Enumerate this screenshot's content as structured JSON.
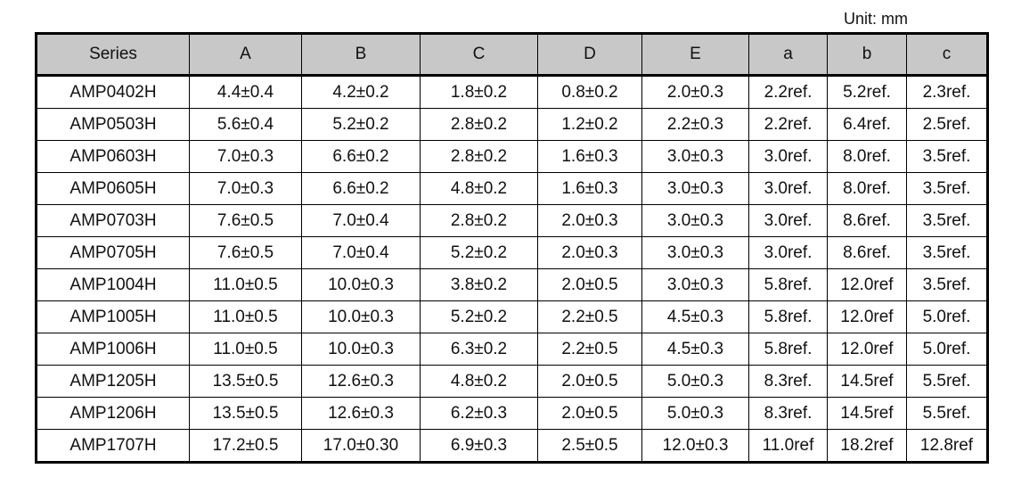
{
  "unit": "Unit: mm",
  "table": {
    "header": [
      "Series",
      "A",
      "B",
      "C",
      "D",
      "E",
      "a",
      "b",
      "c"
    ],
    "rows": [
      [
        "AMP0402H",
        "4.4±0.4",
        "4.2±0.2",
        "1.8±0.2",
        "0.8±0.2",
        "2.0±0.3",
        "2.2ref.",
        "5.2ref.",
        "2.3ref."
      ],
      [
        "AMP0503H",
        "5.6±0.4",
        "5.2±0.2",
        "2.8±0.2",
        "1.2±0.2",
        "2.2±0.3",
        "2.2ref.",
        "6.4ref.",
        "2.5ref."
      ],
      [
        "AMP0603H",
        "7.0±0.3",
        "6.6±0.2",
        "2.8±0.2",
        "1.6±0.3",
        "3.0±0.3",
        "3.0ref.",
        "8.0ref.",
        "3.5ref."
      ],
      [
        "AMP0605H",
        "7.0±0.3",
        "6.6±0.2",
        "4.8±0.2",
        "1.6±0.3",
        "3.0±0.3",
        "3.0ref.",
        "8.0ref.",
        "3.5ref."
      ],
      [
        "AMP0703H",
        "7.6±0.5",
        "7.0±0.4",
        "2.8±0.2",
        "2.0±0.3",
        "3.0±0.3",
        "3.0ref.",
        "8.6ref.",
        "3.5ref."
      ],
      [
        "AMP0705H",
        "7.6±0.5",
        "7.0±0.4",
        "5.2±0.2",
        "2.0±0.3",
        "3.0±0.3",
        "3.0ref.",
        "8.6ref.",
        "3.5ref."
      ],
      [
        "AMP1004H",
        "11.0±0.5",
        "10.0±0.3",
        "3.8±0.2",
        "2.0±0.5",
        "3.0±0.3",
        "5.8ref.",
        "12.0ref",
        "3.5ref."
      ],
      [
        "AMP1005H",
        "11.0±0.5",
        "10.0±0.3",
        "5.2±0.2",
        "2.2±0.5",
        "4.5±0.3",
        "5.8ref.",
        "12.0ref",
        "5.0ref."
      ],
      [
        "AMP1006H",
        "11.0±0.5",
        "10.0±0.3",
        "6.3±0.2",
        "2.2±0.5",
        "4.5±0.3",
        "5.8ref.",
        "12.0ref",
        "5.0ref."
      ],
      [
        "AMP1205H",
        "13.5±0.5",
        "12.6±0.3",
        "4.8±0.2",
        "2.0±0.5",
        "5.0±0.3",
        "8.3ref.",
        "14.5ref",
        "5.5ref."
      ],
      [
        "AMP1206H",
        "13.5±0.5",
        "12.6±0.3",
        "6.2±0.3",
        "2.0±0.5",
        "5.0±0.3",
        "8.3ref.",
        "14.5ref",
        "5.5ref."
      ],
      [
        "AMP1707H",
        "17.2±0.5",
        "17.0±0.30",
        "6.9±0.3",
        "2.5±0.5",
        "12.0±0.3",
        "11.0ref",
        "18.2ref",
        "12.8ref"
      ]
    ]
  }
}
